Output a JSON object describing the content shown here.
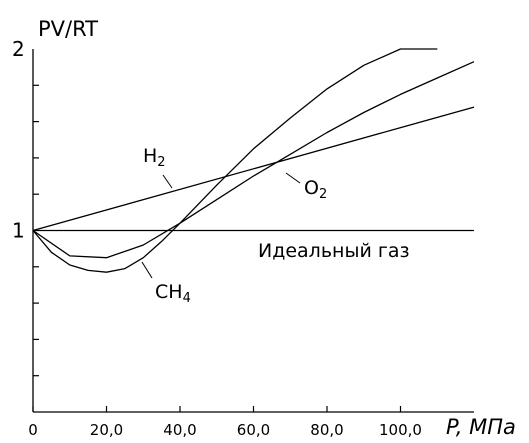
{
  "chart_data": {
    "type": "line",
    "ylabel": "PV/RT",
    "xlabel": "P,  МПа",
    "xlim": [
      0,
      120
    ],
    "ylim": [
      0,
      2
    ],
    "x_ticks": [
      0,
      20,
      40,
      60,
      80,
      100
    ],
    "x_tick_labels": [
      "0",
      "20,0",
      "40,0",
      "60,0",
      "80,0",
      "100,0"
    ],
    "y_tick_labels": [
      {
        "value": 1,
        "label": "1"
      },
      {
        "value": 2,
        "label": "2"
      }
    ],
    "y_minor_ticks": [
      0.2,
      0.4,
      0.6,
      0.8,
      1.2,
      1.4,
      1.6,
      1.8
    ],
    "grid": false,
    "series": [
      {
        "name": "H2",
        "label_main": "H",
        "label_sub": "2",
        "x": [
          0,
          120
        ],
        "y": [
          1,
          1.68
        ]
      },
      {
        "name": "O2",
        "label_main": "O",
        "label_sub": "2",
        "x": [
          0,
          10,
          20,
          30,
          40,
          50,
          60,
          70,
          80,
          90,
          100,
          110,
          120
        ],
        "y": [
          1,
          0.86,
          0.85,
          0.92,
          1.04,
          1.17,
          1.3,
          1.42,
          1.54,
          1.65,
          1.75,
          1.84,
          1.93
        ]
      },
      {
        "name": "CH4",
        "label_main": "CH",
        "label_sub": "4",
        "x": [
          0,
          5,
          10,
          15,
          20,
          25,
          30,
          35,
          40,
          50,
          60,
          70,
          80,
          90,
          100,
          110
        ],
        "y": [
          1,
          0.88,
          0.81,
          0.78,
          0.77,
          0.79,
          0.85,
          0.94,
          1.04,
          1.25,
          1.45,
          1.62,
          1.78,
          1.91,
          2.0,
          2.0
        ]
      },
      {
        "name": "Идеальный газ",
        "label_main": "Идеальный газ",
        "label_sub": "",
        "x": [
          0,
          120
        ],
        "y": [
          1,
          1
        ]
      }
    ]
  }
}
